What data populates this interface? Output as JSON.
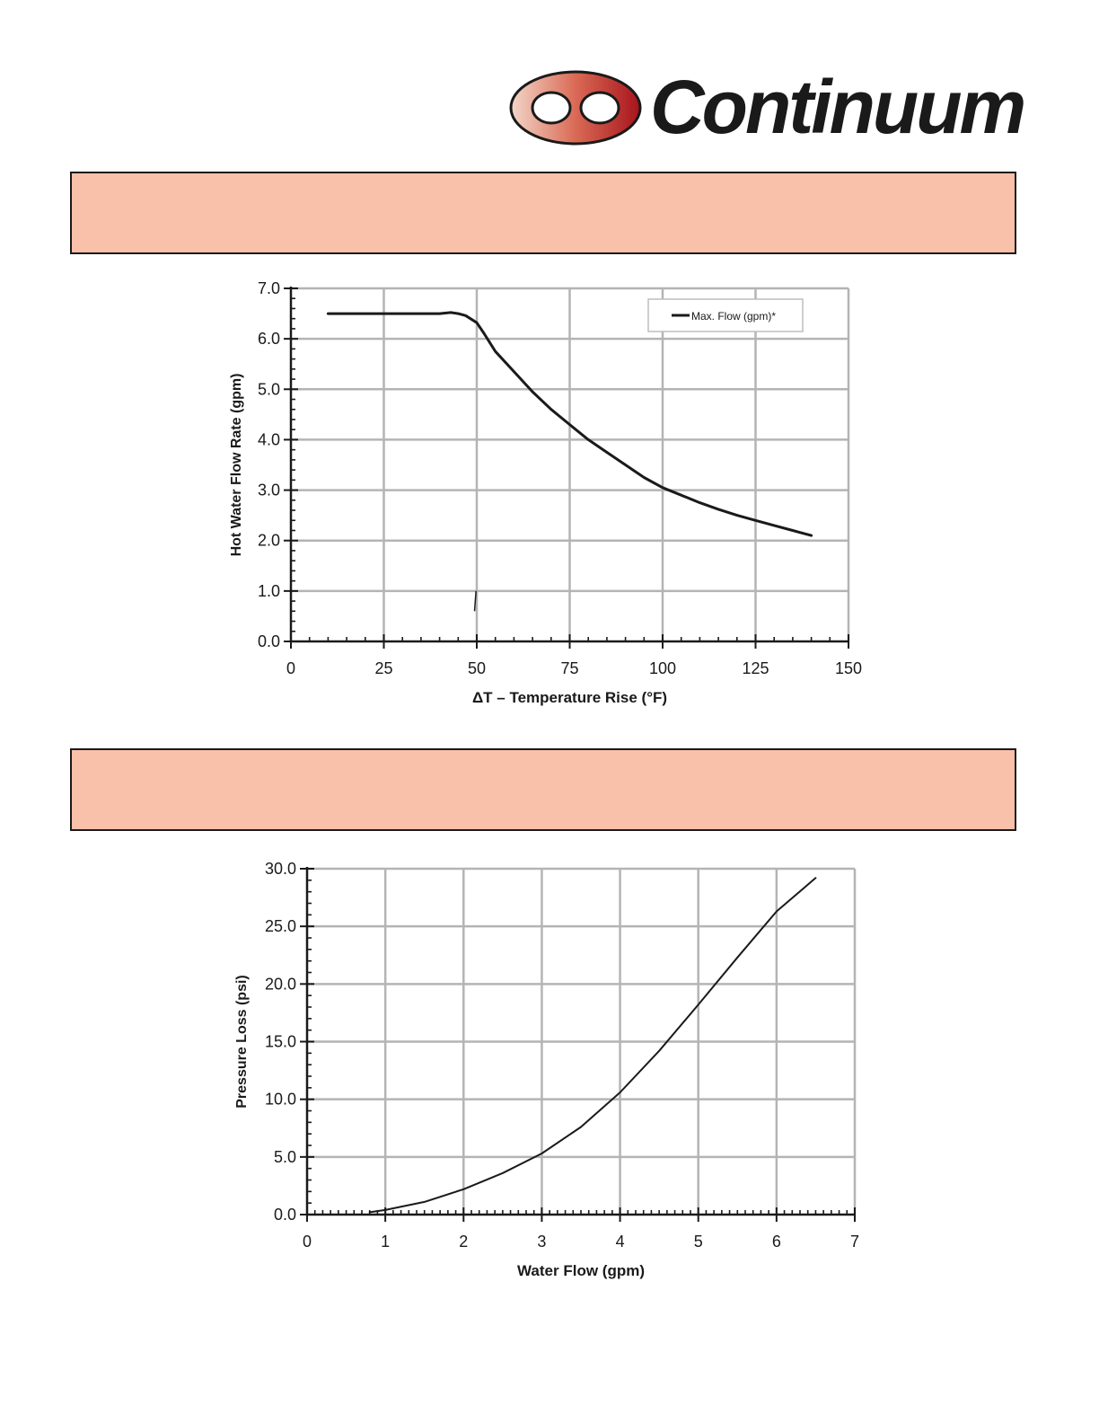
{
  "logo": {
    "text": "Continuum",
    "icon": "interlocking-rings-icon"
  },
  "colors": {
    "banner": "#f9c0aa",
    "grid": "#b4b4b4",
    "ink": "#1a1a1a"
  },
  "chart_data": [
    {
      "type": "line",
      "title": "",
      "xlabel": "ΔT – Temperature Rise (°F)",
      "ylabel": "Hot Water Flow Rate (gpm)",
      "xlim": [
        0,
        150
      ],
      "ylim": [
        0,
        7
      ],
      "xticks": [
        0,
        25,
        50,
        75,
        100,
        125,
        150
      ],
      "xtick_labels": [
        "0",
        "25",
        "50",
        "75",
        "100",
        "125",
        "150"
      ],
      "yticks": [
        0,
        1,
        2,
        3,
        4,
        5,
        6,
        7
      ],
      "ytick_labels": [
        "0.0",
        "1.0",
        "2.0",
        "3.0",
        "4.0",
        "5.0",
        "6.0",
        "7.0"
      ],
      "grid": true,
      "legend": "top-right",
      "series": [
        {
          "name": "Max. Flow (gpm)*",
          "x": [
            10,
            20,
            30,
            40,
            43,
            45,
            47,
            50,
            52,
            55,
            60,
            65,
            70,
            75,
            80,
            85,
            90,
            95,
            100,
            105,
            110,
            115,
            120,
            125,
            130,
            135,
            140
          ],
          "y": [
            6.5,
            6.5,
            6.5,
            6.5,
            6.52,
            6.5,
            6.46,
            6.32,
            6.1,
            5.75,
            5.35,
            4.95,
            4.6,
            4.3,
            4.0,
            3.75,
            3.5,
            3.25,
            3.05,
            2.9,
            2.75,
            2.62,
            2.5,
            2.4,
            2.3,
            2.2,
            2.1
          ]
        }
      ],
      "annotations": [
        {
          "type": "stray-mark",
          "x": [
            49.8,
            49.4
          ],
          "y": [
            1.0,
            0.6
          ]
        }
      ]
    },
    {
      "type": "line",
      "title": "",
      "xlabel": "Water Flow (gpm)",
      "ylabel": "Pressure Loss (psi)",
      "xlim": [
        0,
        7
      ],
      "ylim": [
        0,
        30
      ],
      "xticks": [
        0,
        1,
        2,
        3,
        4,
        5,
        6,
        7
      ],
      "xtick_labels": [
        "0",
        "1",
        "2",
        "3",
        "4",
        "5",
        "6",
        "7"
      ],
      "yticks": [
        0,
        5,
        10,
        15,
        20,
        25,
        30
      ],
      "ytick_labels": [
        "0.0",
        "5.0",
        "10.0",
        "15.0",
        "20.0",
        "25.0",
        "30.0"
      ],
      "grid": true,
      "legend": "none",
      "series": [
        {
          "x": [
            0.8,
            1.0,
            1.5,
            2.0,
            2.5,
            3.0,
            3.5,
            4.0,
            4.5,
            5.0,
            5.5,
            6.0,
            6.5
          ],
          "y": [
            0.2,
            0.4,
            1.1,
            2.2,
            3.6,
            5.3,
            7.6,
            10.6,
            14.2,
            18.2,
            22.3,
            26.3,
            29.2
          ]
        }
      ]
    }
  ]
}
